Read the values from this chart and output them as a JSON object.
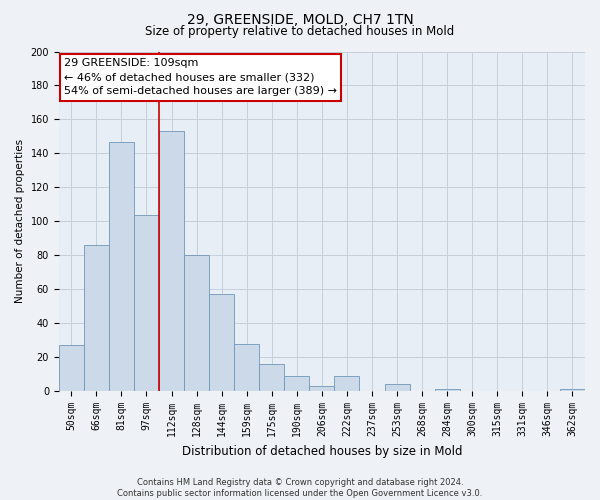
{
  "title": "29, GREENSIDE, MOLD, CH7 1TN",
  "subtitle": "Size of property relative to detached houses in Mold",
  "xlabel": "Distribution of detached houses by size in Mold",
  "ylabel": "Number of detached properties",
  "bar_labels": [
    "50sqm",
    "66sqm",
    "81sqm",
    "97sqm",
    "112sqm",
    "128sqm",
    "144sqm",
    "159sqm",
    "175sqm",
    "190sqm",
    "206sqm",
    "222sqm",
    "237sqm",
    "253sqm",
    "268sqm",
    "284sqm",
    "300sqm",
    "315sqm",
    "331sqm",
    "346sqm",
    "362sqm"
  ],
  "bar_values": [
    27,
    86,
    147,
    104,
    153,
    80,
    57,
    28,
    16,
    9,
    3,
    9,
    0,
    4,
    0,
    1,
    0,
    0,
    0,
    0,
    1
  ],
  "bar_color": "#ccd9e8",
  "bar_edgecolor": "#7096b8",
  "vline_x_idx": 4,
  "vline_color": "#cc0000",
  "annotation_line1": "29 GREENSIDE: 109sqm",
  "annotation_line2": "← 46% of detached houses are smaller (332)",
  "annotation_line3": "54% of semi-detached houses are larger (389) →",
  "annotation_box_facecolor": "#ffffff",
  "annotation_box_edgecolor": "#cc0000",
  "ylim": [
    0,
    200
  ],
  "yticks": [
    0,
    20,
    40,
    60,
    80,
    100,
    120,
    140,
    160,
    180,
    200
  ],
  "footer_line1": "Contains HM Land Registry data © Crown copyright and database right 2024.",
  "footer_line2": "Contains public sector information licensed under the Open Government Licence v3.0.",
  "bg_color": "#eef2f7",
  "plot_bg_color": "#e8eef5",
  "grid_color": "#c5cfda",
  "title_fontsize": 10,
  "subtitle_fontsize": 8.5,
  "xlabel_fontsize": 8.5,
  "ylabel_fontsize": 7.5,
  "tick_fontsize": 7,
  "annotation_fontsize": 8,
  "footer_fontsize": 6
}
